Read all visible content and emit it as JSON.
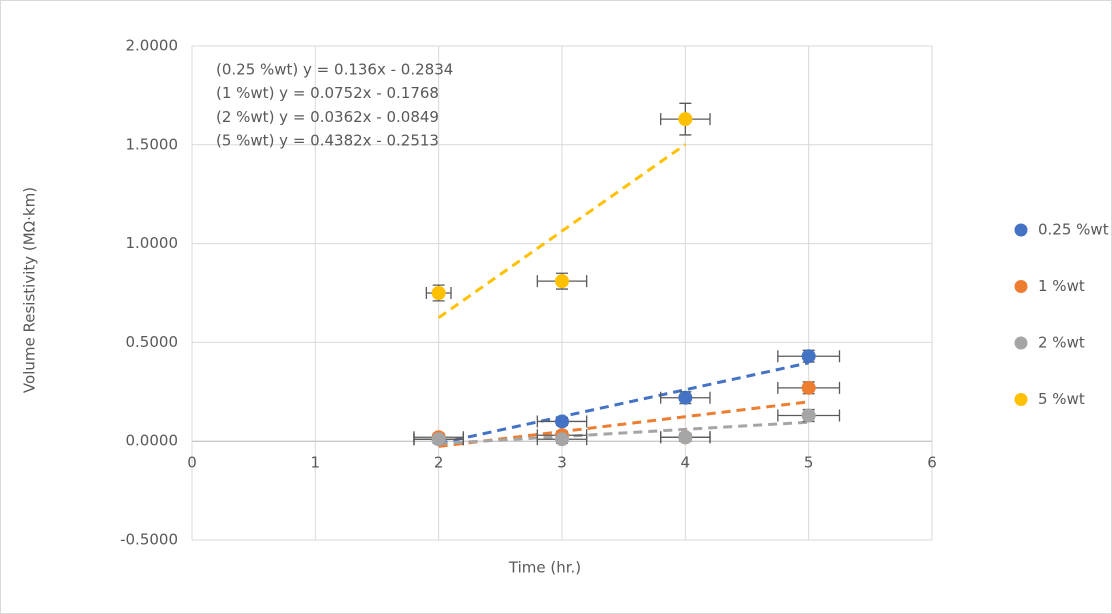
{
  "chart_data": {
    "type": "scatter",
    "x_label": "Time (hr.)",
    "y_label": "Volume Resistivity (MΩ·km)",
    "xlim": [
      0,
      6
    ],
    "xticks": [
      0,
      1,
      2,
      3,
      4,
      5,
      6
    ],
    "ylim": [
      -0.5,
      2
    ],
    "yticks": [
      {
        "value": -0.5,
        "label": "-0.5000"
      },
      {
        "value": 0,
        "label": "0.0000"
      },
      {
        "value": 0.5,
        "label": "0.5000"
      },
      {
        "value": 1,
        "label": "1.0000"
      },
      {
        "value": 1.5,
        "label": "1.5000"
      },
      {
        "value": 2,
        "label": "2.0000"
      }
    ],
    "grid": true,
    "legend": "right",
    "series": [
      {
        "name": "0.25 %wt",
        "color": "#4472c4",
        "x": [
          2,
          3,
          4,
          5
        ],
        "values": [
          0.01,
          0.1,
          0.22,
          0.43
        ],
        "x_errors": [
          0.2,
          0.2,
          0.2,
          0.25
        ],
        "y_errors": [
          0.02,
          0.02,
          0.03,
          0.03
        ],
        "trendline": {
          "label": "(0.25 %wt) y = 0.136x - 0.2834",
          "slope": 0.136,
          "intercept": -0.2834
        }
      },
      {
        "name": "1 %wt",
        "color": "#ed7d31",
        "x": [
          2,
          3,
          4,
          5
        ],
        "values": [
          0.02,
          0.03,
          0.02,
          0.27
        ],
        "x_errors": [
          0.2,
          0.2,
          0.2,
          0.25
        ],
        "y_errors": [
          0.02,
          0.02,
          0.02,
          0.03
        ],
        "trendline": {
          "label": "(1 %wt) y = 0.0752x - 0.1768",
          "slope": 0.0752,
          "intercept": -0.1768
        }
      },
      {
        "name": "2 %wt",
        "color": "#a5a5a5",
        "x": [
          2,
          3,
          4,
          5
        ],
        "values": [
          0.01,
          0.01,
          0.02,
          0.13
        ],
        "x_errors": [
          0.2,
          0.2,
          0.2,
          0.25
        ],
        "y_errors": [
          0.02,
          0.02,
          0.02,
          0.03
        ],
        "trendline": {
          "label": "(2 %wt) y = 0.0362x - 0.0849",
          "slope": 0.0362,
          "intercept": -0.0849
        }
      },
      {
        "name": "5 %wt",
        "color": "#ffc000",
        "x": [
          2,
          3,
          4
        ],
        "values": [
          0.75,
          0.81,
          1.63
        ],
        "x_errors": [
          0.1,
          0.2,
          0.2
        ],
        "y_errors": [
          0.04,
          0.04,
          0.08
        ],
        "trendline": {
          "label": "(5 %wt) y = 0.4382x - 0.2513",
          "slope": 0.4382,
          "intercept": -0.2513
        }
      }
    ]
  }
}
